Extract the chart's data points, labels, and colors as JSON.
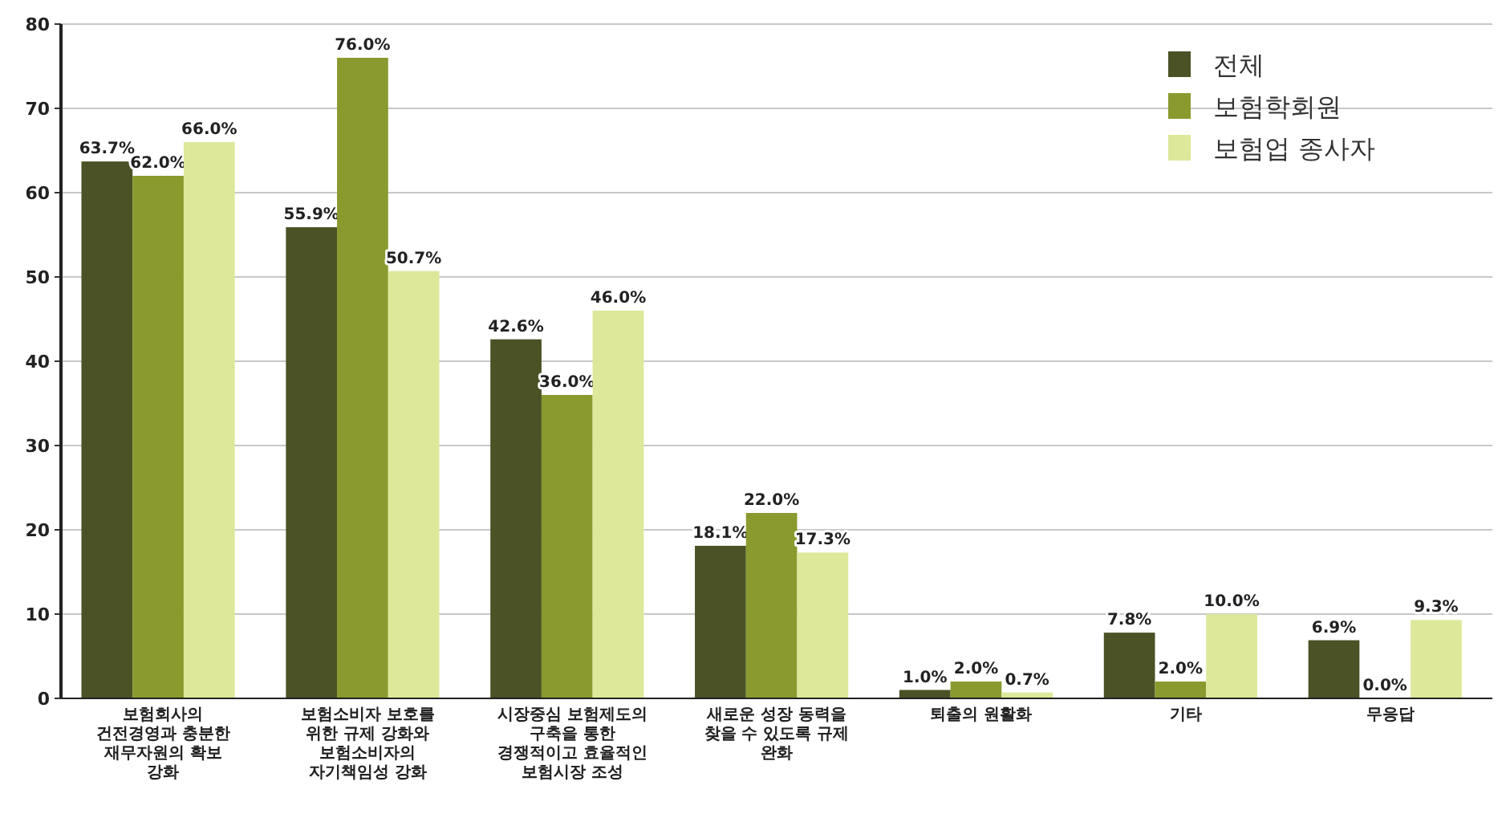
{
  "chart_data": {
    "type": "bar",
    "categories": [
      "보험회사의\n건전경영과 충분한\n재무자원의 확보\n강화",
      "보험소비자 보호를\n위한 규제 강화와\n보험소비자의\n자기책임성 강화",
      "시장중심 보험제도의\n구축을 통한\n경쟁적이고 효율적인\n보험시장 조성",
      "새로운 성장 동력을\n찾을 수 있도록 규제\n완화",
      "퇴출의 원활화",
      "기타",
      "무응답"
    ],
    "series": [
      {
        "name": "전체",
        "color": "#4a5226",
        "values": [
          63.7,
          55.9,
          42.6,
          18.1,
          1.0,
          7.8,
          6.9
        ],
        "value_labels": [
          "63.7%",
          "55.9%",
          "42.6%",
          "18.1%",
          "1.0%",
          "7.8%",
          "6.9%"
        ]
      },
      {
        "name": "보험학회원",
        "color": "#8a9a2e",
        "values": [
          62.0,
          76.0,
          36.0,
          22.0,
          2.0,
          2.0,
          0.0
        ],
        "value_labels": [
          "62.0%",
          "76.0%",
          "36.0%",
          "22.0%",
          "2.0%",
          "2.0%",
          "0.0%"
        ]
      },
      {
        "name": "보험업 종사자",
        "color": "#dde89a",
        "values": [
          66.0,
          50.7,
          46.0,
          17.3,
          0.7,
          10.0,
          9.3
        ],
        "value_labels": [
          "66.0%",
          "50.7%",
          "46.0%",
          "17.3%",
          "0.7%",
          "10.0%",
          "9.3%"
        ]
      }
    ],
    "ylim": [
      0,
      80
    ],
    "yticks": [
      0,
      10,
      20,
      30,
      40,
      50,
      60,
      70,
      80
    ],
    "grid": "y",
    "legend": "top right"
  }
}
